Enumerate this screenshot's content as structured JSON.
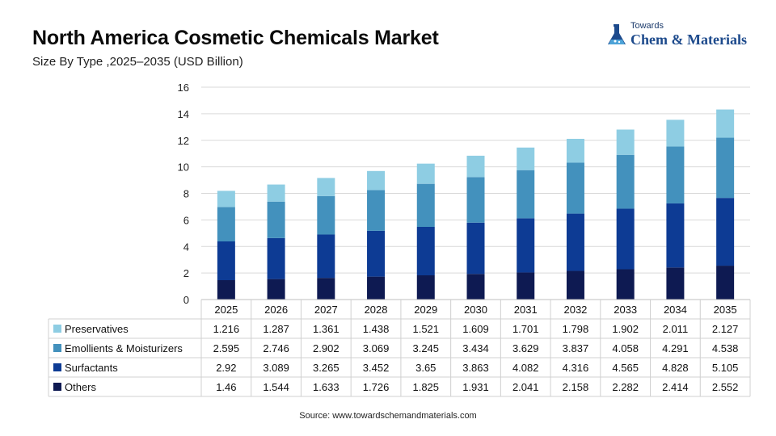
{
  "header": {
    "title": "North America Cosmetic Chemicals Market",
    "subtitle": "Size By Type ,2025–2035 (USD Billion)"
  },
  "logo": {
    "line1": "Towards",
    "line2": "Chem & Materials",
    "icon": "flask-icon"
  },
  "source": "Source: www.towardschemandmaterials.com",
  "chart_data": {
    "type": "bar",
    "stacked": true,
    "categories": [
      "2025",
      "2026",
      "2027",
      "2028",
      "2029",
      "2030",
      "2031",
      "2032",
      "2033",
      "2034",
      "2035"
    ],
    "series": [
      {
        "name": "Others",
        "color": "#0e1a52",
        "values": [
          "1.46",
          "1.544",
          "1.633",
          "1.726",
          "1.825",
          "1.931",
          "2.041",
          "2.158",
          "2.282",
          "2.414",
          "2.552"
        ]
      },
      {
        "name": "Surfactants",
        "color": "#0d3b94",
        "values": [
          "2.92",
          "3.089",
          "3.265",
          "3.452",
          "3.65",
          "3.863",
          "4.082",
          "4.316",
          "4.565",
          "4.828",
          "5.105"
        ]
      },
      {
        "name": "Emollients & Moisturizers",
        "color": "#4391bd",
        "values": [
          "2.595",
          "2.746",
          "2.902",
          "3.069",
          "3.245",
          "3.434",
          "3.629",
          "3.837",
          "4.058",
          "4.291",
          "4.538"
        ]
      },
      {
        "name": "Preservatives",
        "color": "#8ecde3",
        "values": [
          "1.216",
          "1.287",
          "1.361",
          "1.438",
          "1.521",
          "1.609",
          "1.701",
          "1.798",
          "1.902",
          "2.011",
          "2.127"
        ]
      }
    ],
    "table_row_order": [
      "Preservatives",
      "Emollients & Moisturizers",
      "Surfactants",
      "Others"
    ],
    "ylim": [
      0,
      16
    ],
    "yticks": [
      "0",
      "2",
      "4",
      "6",
      "8",
      "10",
      "12",
      "14",
      "16"
    ],
    "grid": true,
    "legend": "data-table-below"
  }
}
